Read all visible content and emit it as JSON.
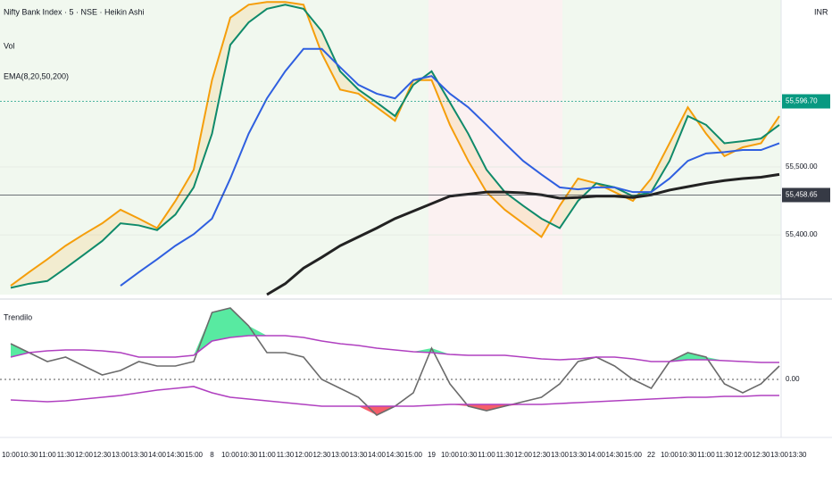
{
  "chart_data": [
    {
      "type": "line",
      "title": "Nifty Bank Index · 5 · NSE · Heikin Ashi",
      "subtitle": "Vol",
      "indicator": "EMA(8,20,50,200)",
      "currency": "INR",
      "categories": [
        "10:00",
        "10:30",
        "11:00",
        "11:30",
        "12:00",
        "12:30",
        "13:00",
        "13:30",
        "14:00",
        "14:30",
        "15:00",
        "8",
        "10:00",
        "10:30",
        "11:00",
        "11:30",
        "12:00",
        "12:30",
        "13:00",
        "13:30",
        "14:00",
        "14:30",
        "15:00",
        "19",
        "10:00",
        "10:30",
        "11:00",
        "11:30",
        "12:00",
        "12:30",
        "13:00",
        "13:30",
        "14:00",
        "14:30",
        "15:00",
        "22",
        "10:00",
        "10:30",
        "11:00",
        "11:30",
        "12:00",
        "12:30",
        "13:00",
        "13:30"
      ],
      "series": [
        {
          "color": "#f59e0b",
          "values": [
            55325,
            55345,
            55364,
            55384,
            55401,
            55417,
            55437,
            55424,
            55410,
            55450,
            55496,
            55628,
            55720,
            55739,
            55743,
            55743,
            55739,
            55667,
            55614,
            55608,
            55588,
            55568,
            55628,
            55628,
            55562,
            55509,
            55463,
            55437,
            55417,
            55397,
            55443,
            55483,
            55476,
            55463,
            55450,
            55483,
            55535,
            55588,
            55549,
            55516,
            55529,
            55535,
            55575,
            null
          ]
        },
        {
          "color": "#0f8a6a",
          "values": [
            55322,
            55328,
            55332,
            55351,
            55371,
            55391,
            55417,
            55414,
            55407,
            55430,
            55470,
            55549,
            55680,
            55713,
            55733,
            55739,
            55733,
            55700,
            55641,
            55614,
            55595,
            55575,
            55621,
            55641,
            55595,
            55549,
            55496,
            55463,
            55443,
            55424,
            55410,
            55450,
            55476,
            55470,
            55457,
            55463,
            55509,
            55575,
            55562,
            55535,
            55538,
            55542,
            55562,
            null
          ]
        },
        {
          "color": "#2f5fe0",
          "values": [
            null,
            null,
            null,
            null,
            null,
            null,
            55325,
            55345,
            55364,
            55384,
            55401,
            55424,
            55483,
            55549,
            55601,
            55641,
            55674,
            55674,
            55647,
            55621,
            55608,
            55601,
            55628,
            55634,
            55608,
            55588,
            55562,
            55535,
            55509,
            55489,
            55470,
            55467,
            55470,
            55470,
            55463,
            55463,
            55483,
            55509,
            55520,
            55522,
            55525,
            55525,
            55535,
            null
          ]
        },
        {
          "color": "#222222",
          "values": [
            null,
            null,
            null,
            null,
            null,
            null,
            null,
            null,
            null,
            null,
            null,
            null,
            null,
            null,
            55312,
            55328,
            55351,
            55367,
            55384,
            55397,
            55410,
            55424,
            55435,
            55446,
            55457,
            55460,
            55463,
            55463,
            55462,
            55459,
            55454,
            55455,
            55457,
            55457,
            55455,
            55459,
            55466,
            55471,
            55476,
            55480,
            55483,
            55485,
            55489,
            null
          ]
        }
      ],
      "price_lines": [
        {
          "value": 55596.7,
          "label": "55,596.70",
          "color": "#089981"
        },
        {
          "value": 55458.65,
          "label": "55,458.65",
          "color": "#363a45"
        }
      ],
      "ylim": [
        55312,
        55746
      ],
      "yticks": [
        {
          "value": 55500,
          "label": "55,500.00"
        },
        {
          "value": 55400,
          "label": "55,400.00"
        }
      ]
    },
    {
      "type": "line",
      "title": "Trendilo",
      "series": [
        {
          "color": "#6b6b6b",
          "values": [
            40,
            30,
            20,
            25,
            15,
            5,
            10,
            20,
            15,
            15,
            20,
            75,
            80,
            60,
            30,
            30,
            25,
            0,
            -10,
            -20,
            -40,
            -30,
            -15,
            35,
            -5,
            -30,
            -35,
            -30,
            -25,
            -20,
            -5,
            20,
            25,
            15,
            0,
            -10,
            20,
            30,
            25,
            -5,
            -15,
            -5,
            15,
            null
          ]
        },
        {
          "color": "#b040c0",
          "values": [
            25,
            30,
            32,
            33,
            33,
            32,
            30,
            25,
            25,
            25,
            27,
            43,
            47,
            49,
            49,
            49,
            47,
            43,
            40,
            38,
            35,
            33,
            31,
            30,
            28,
            27,
            27,
            27,
            25,
            23,
            22,
            23,
            25,
            25,
            23,
            20,
            20,
            22,
            22,
            21,
            20,
            19,
            19,
            null
          ]
        },
        {
          "color": "#b040c0",
          "values": [
            -23,
            -24,
            -25,
            -24,
            -22,
            -20,
            -18,
            -15,
            -12,
            -10,
            -8,
            -15,
            -20,
            -22,
            -24,
            -26,
            -28,
            -30,
            -30,
            -30,
            -30,
            -30,
            -30,
            -29,
            -28,
            -28,
            -28,
            -28,
            -28,
            -28,
            -27,
            -26,
            -25,
            -24,
            -23,
            -22,
            -21,
            -20,
            -20,
            -19,
            -19,
            -18,
            -18,
            null
          ]
        }
      ],
      "ylim": [
        -60,
        80
      ],
      "yticks": [
        {
          "value": 0,
          "label": "0.00"
        }
      ]
    }
  ]
}
